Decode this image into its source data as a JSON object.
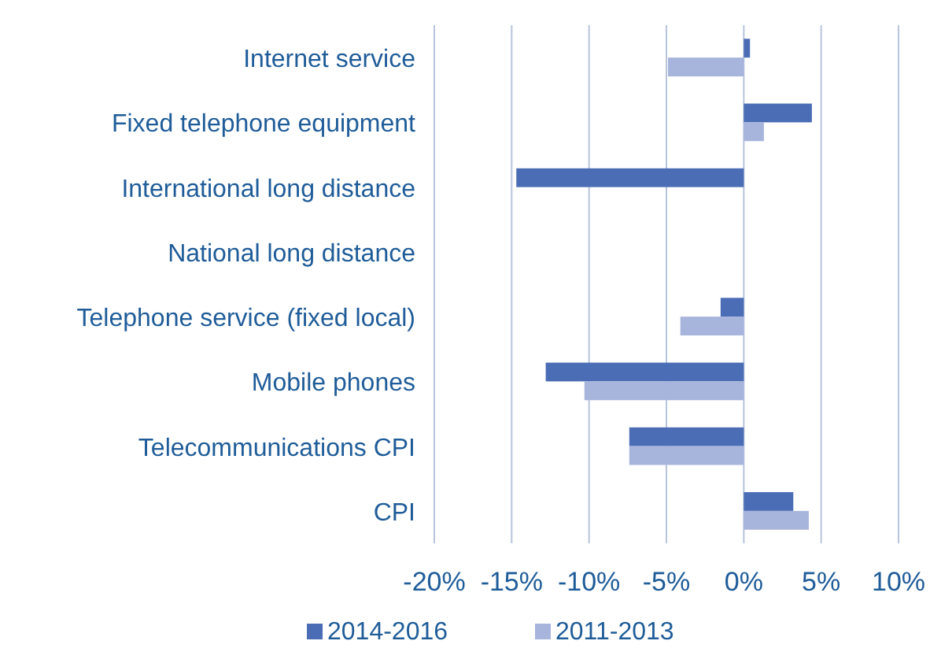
{
  "chart_data": {
    "type": "bar",
    "orientation": "horizontal",
    "categories": [
      "Internet service",
      "Fixed telephone equipment",
      "International long distance",
      "National long distance",
      "Telephone service (fixed local)",
      "Mobile phones",
      "Telecommunications CPI",
      "CPI"
    ],
    "series": [
      {
        "name": "2014-2016",
        "color": "#4a6db5",
        "values": [
          0.4,
          4.4,
          -14.7,
          0,
          -1.5,
          -12.8,
          -7.4,
          3.2
        ]
      },
      {
        "name": "2011-2013",
        "color": "#a7b4dc",
        "values": [
          -4.9,
          1.3,
          0,
          0,
          -4.1,
          -10.3,
          -7.4,
          4.2
        ]
      }
    ],
    "xlim": [
      -20,
      10
    ],
    "xticks": [
      {
        "value": -20,
        "label": "-20%"
      },
      {
        "value": -15,
        "label": "-15%"
      },
      {
        "value": -10,
        "label": "-10%"
      },
      {
        "value": -5,
        "label": "-5%"
      },
      {
        "value": 0,
        "label": "0%"
      },
      {
        "value": 5,
        "label": "5%"
      },
      {
        "value": 10,
        "label": "10%"
      }
    ],
    "grid": "x",
    "legend": "bottom"
  }
}
